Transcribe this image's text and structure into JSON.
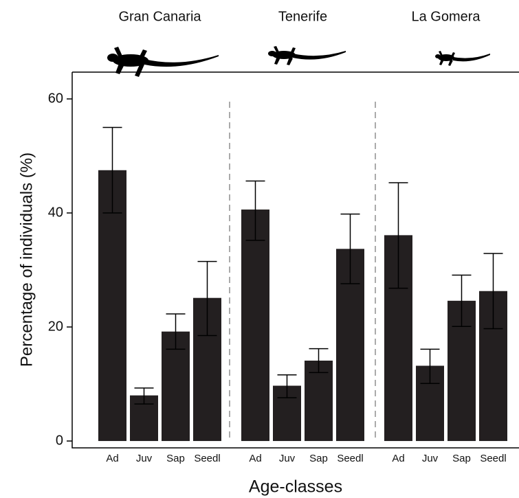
{
  "chart_data": {
    "type": "bar",
    "y_label": "Percentage of individuals (%)",
    "x_label": "Age-classes",
    "color": "#231f20",
    "ylim": [
      -1.2,
      64.7
    ],
    "yticks": [
      0,
      20,
      40,
      60
    ],
    "panels": [
      {
        "title": "Gran Canaria",
        "categories": [
          "Ad",
          "Juv",
          "Sap",
          "Seedl"
        ],
        "values": [
          47.5,
          8.0,
          19.2,
          25.1
        ],
        "error_low": [
          40.0,
          6.5,
          16.1,
          18.5
        ],
        "error_high": [
          55.0,
          9.3,
          22.3,
          31.5
        ]
      },
      {
        "title": "Tenerife",
        "categories": [
          "Ad",
          "Juv",
          "Sap",
          "Seedl"
        ],
        "values": [
          40.6,
          9.7,
          14.1,
          33.7
        ],
        "error_low": [
          35.2,
          7.6,
          12.0,
          27.6
        ],
        "error_high": [
          45.6,
          11.6,
          16.2,
          39.8
        ]
      },
      {
        "title": "La Gomera",
        "categories": [
          "Ad",
          "Juv",
          "Sap",
          "Seedl"
        ],
        "values": [
          36.1,
          13.2,
          24.6,
          26.3
        ],
        "error_low": [
          26.8,
          10.1,
          20.1,
          19.7
        ],
        "error_high": [
          45.3,
          16.1,
          29.1,
          32.9
        ]
      }
    ]
  }
}
